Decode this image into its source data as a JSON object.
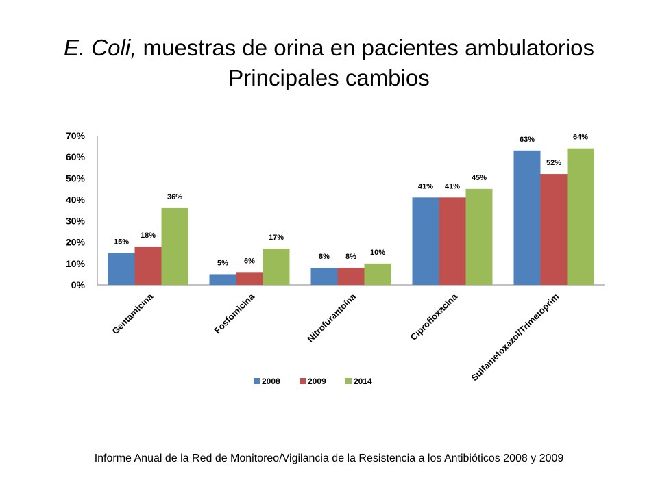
{
  "title": {
    "italic": "E. Coli,",
    "rest": " muestras de orina en  pacientes ambulatorios",
    "line2": "Principales cambios"
  },
  "source_note": "Informe Anual de la Red de Monitoreo/Vigilancia de la Resistencia a los Antibióticos 2008 y 2009",
  "chart_data": {
    "type": "bar",
    "categories": [
      "Gentamicina",
      "Fosfomicina",
      "Nitrofurantoína",
      "Ciprofloxacina",
      "Sulfametoxazol/Trimetoprim"
    ],
    "series": [
      {
        "name": "2008",
        "color": "#4f81bd",
        "values": [
          15,
          5,
          8,
          41,
          63
        ],
        "labels": [
          "15%",
          "5%",
          "8%",
          "41%",
          "63%"
        ]
      },
      {
        "name": "2009",
        "color": "#c0504d",
        "values": [
          18,
          6,
          8,
          41,
          52
        ],
        "labels": [
          "18%",
          "6%",
          "8%",
          "41%",
          "52%"
        ]
      },
      {
        "name": "2014",
        "color": "#9bbb59",
        "values": [
          36,
          17,
          10,
          45,
          64
        ],
        "labels": [
          "36%",
          "17%",
          "10%",
          "45%",
          "64%"
        ]
      }
    ],
    "ylim": [
      0,
      70
    ],
    "yticks": [
      0,
      10,
      20,
      30,
      40,
      50,
      60,
      70
    ],
    "ytick_labels": [
      "0%",
      "10%",
      "20%",
      "30%",
      "40%",
      "50%",
      "60%",
      "70%"
    ],
    "grid": false,
    "legend_position": "bottom"
  }
}
